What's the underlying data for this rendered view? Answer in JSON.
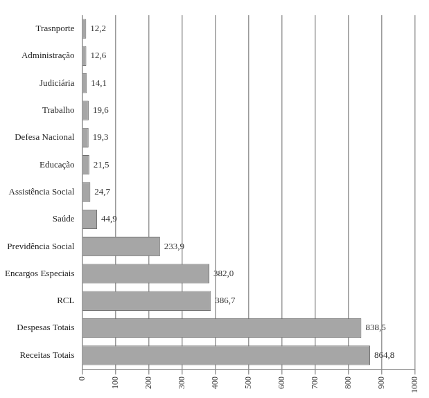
{
  "chart_data": {
    "type": "bar",
    "orientation": "horizontal",
    "categories": [
      "Trasnporte",
      "Administração",
      "Judiciária",
      "Trabalho",
      "Defesa Nacional",
      "Educação",
      "Assistência Social",
      "Saúde",
      "Previdência Social",
      "Encargos Especiais",
      "RCL",
      "Despesas Totais",
      "Receitas Totais"
    ],
    "values": [
      12.2,
      12.6,
      14.1,
      19.6,
      19.3,
      21.5,
      24.7,
      44.9,
      233.9,
      382.0,
      386.7,
      838.5,
      864.8
    ],
    "value_labels": [
      "12,2",
      "12,6",
      "14,1",
      "19,6",
      "19,3",
      "21,5",
      "24,7",
      "44,9",
      "233,9",
      "382,0",
      "386,7",
      "838,5",
      "864,8"
    ],
    "color": "#a6a6a6",
    "xlim": [
      0,
      1000
    ],
    "xticks": [
      0,
      100,
      200,
      300,
      400,
      500,
      600,
      700,
      800,
      900,
      1000
    ],
    "grid": true,
    "data_labels": true
  }
}
